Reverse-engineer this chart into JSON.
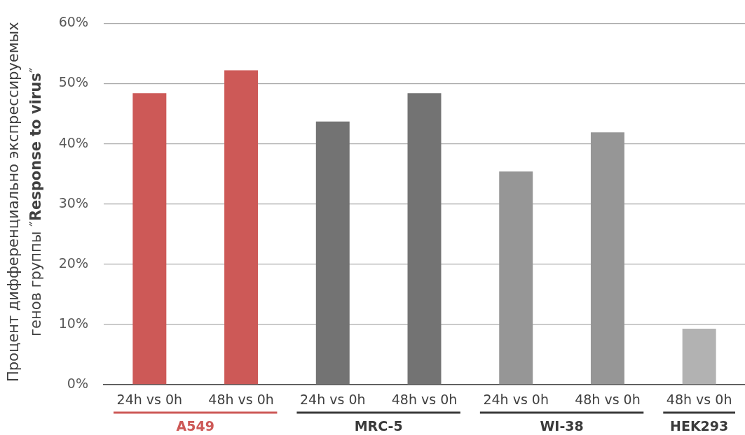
{
  "chart_data": {
    "type": "bar",
    "ylabel": "Процент дифференциально экспрессируемых\nгенов группы ″Response to virus″",
    "categories": [
      "24h vs 0h",
      "48h vs 0h",
      "24h vs 0h",
      "48h vs 0h",
      "24h vs 0h",
      "48h vs 0h",
      "48h vs 0h"
    ],
    "series": [
      {
        "name": "A549",
        "color": "#cd5957",
        "values": [
          48.4,
          52.2,
          null,
          null,
          null,
          null,
          null
        ]
      },
      {
        "name": "MRC-5",
        "color": "#737373",
        "values": [
          null,
          null,
          43.7,
          48.4,
          null,
          null,
          null
        ]
      },
      {
        "name": "WI-38",
        "color": "#969696",
        "values": [
          null,
          null,
          null,
          null,
          35.4,
          41.9,
          null
        ]
      },
      {
        "name": "HEK293",
        "color": "#b2b2b2",
        "values": [
          null,
          null,
          null,
          null,
          null,
          null,
          9.3
        ]
      }
    ],
    "ylim": [
      0,
      60
    ],
    "yticks": [
      {
        "value": 0,
        "label": "0%"
      },
      {
        "value": 10,
        "label": "10%"
      },
      {
        "value": 20,
        "label": "20%"
      },
      {
        "value": 30,
        "label": "30%"
      },
      {
        "value": 40,
        "label": "40%"
      },
      {
        "value": 50,
        "label": "50%"
      },
      {
        "value": 60,
        "label": "60%"
      }
    ],
    "grid": "y"
  }
}
